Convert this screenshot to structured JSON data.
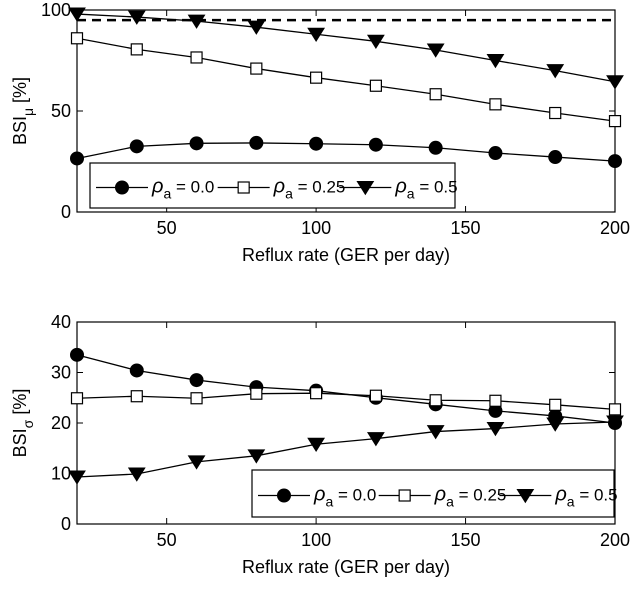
{
  "chart_data": [
    {
      "type": "line",
      "x": [
        20,
        40,
        60,
        80,
        100,
        120,
        140,
        160,
        180,
        200
      ],
      "xlim": [
        20,
        200
      ],
      "ylim": [
        0,
        100
      ],
      "xticks": [
        50,
        100,
        150,
        200
      ],
      "yticks": [
        0,
        50,
        100
      ],
      "xlabel": "Reflux rate (GER per day)",
      "ylabel_main": "BSI",
      "ylabel_sub": "μ",
      "ylabel_unit": " [%]",
      "grid": false,
      "legend": "bottom-left, single row",
      "reference_line": {
        "y": 95,
        "style": "dashed"
      },
      "series": [
        {
          "name": "ρ_a = 0.0",
          "legend_rho": "ρ",
          "legend_sub": "a",
          "legend_val": " = 0.0",
          "marker": "circle",
          "values": [
            26.5,
            32.5,
            34,
            34.2,
            33.8,
            33.3,
            31.8,
            29.2,
            27.2,
            25.2
          ]
        },
        {
          "name": "ρ_a = 0.25",
          "legend_rho": "ρ",
          "legend_sub": "a",
          "legend_val": " = 0.25",
          "marker": "square",
          "values": [
            86,
            80.5,
            76.5,
            71,
            66.5,
            62.5,
            58.3,
            53.3,
            49,
            45
          ]
        },
        {
          "name": "ρ_a = 0.5",
          "legend_rho": "ρ",
          "legend_sub": "a",
          "legend_val": " = 0.5",
          "marker": "triangle",
          "values": [
            98,
            96.5,
            94.5,
            91.5,
            88,
            84.5,
            80.2,
            75,
            70,
            64.5
          ]
        }
      ]
    },
    {
      "type": "line",
      "x": [
        20,
        40,
        60,
        80,
        100,
        120,
        140,
        160,
        180,
        200
      ],
      "xlim": [
        20,
        200
      ],
      "ylim": [
        0,
        40
      ],
      "xticks": [
        50,
        100,
        150,
        200
      ],
      "yticks": [
        0,
        10,
        20,
        30,
        40
      ],
      "xlabel": "Reflux rate (GER per day)",
      "ylabel_main": "BSI",
      "ylabel_sub": "σ",
      "ylabel_unit": " [%]",
      "grid": false,
      "legend": "bottom-right, single row",
      "series": [
        {
          "name": "ρ_a = 0.0",
          "legend_rho": "ρ",
          "legend_sub": "a",
          "legend_val": " = 0.0",
          "marker": "circle",
          "values": [
            33.5,
            30.4,
            28.5,
            27.1,
            26.4,
            25,
            23.7,
            22.4,
            21.4,
            20
          ]
        },
        {
          "name": "ρ_a = 0.25",
          "legend_rho": "ρ",
          "legend_sub": "a",
          "legend_val": " = 0.25",
          "marker": "square",
          "values": [
            24.9,
            25.3,
            24.9,
            25.8,
            25.9,
            25.4,
            24.5,
            24.4,
            23.6,
            22.7
          ]
        },
        {
          "name": "ρ_a = 0.5",
          "legend_rho": "ρ",
          "legend_sub": "a",
          "legend_val": " = 0.5",
          "marker": "triangle",
          "values": [
            9.3,
            9.9,
            12.3,
            13.5,
            15.8,
            16.9,
            18.3,
            18.9,
            19.8,
            20.2
          ]
        }
      ]
    }
  ]
}
